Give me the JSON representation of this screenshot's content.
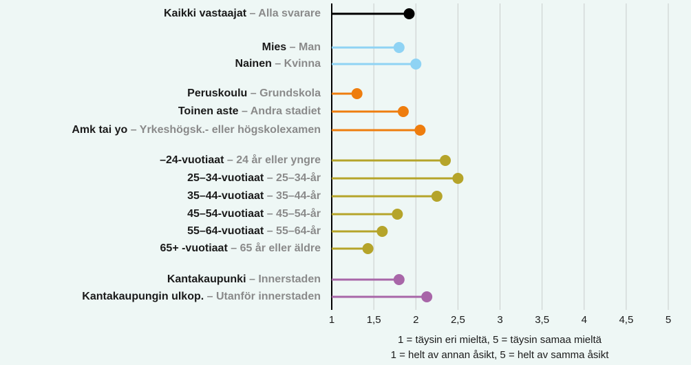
{
  "chart_data": {
    "type": "lollipop",
    "groups": [
      {
        "color": "#000000",
        "categories": [
          {
            "fi": "Kaikki vastaajat",
            "sv": "– Alla svarare"
          }
        ],
        "values": [
          1.92
        ]
      },
      {
        "color": "#8fd3f4",
        "categories": [
          {
            "fi": "Mies",
            "sv": "– Man"
          },
          {
            "fi": "Nainen",
            "sv": "– Kvinna"
          }
        ],
        "values": [
          1.8,
          2.0
        ]
      },
      {
        "color": "#ee7d0e",
        "categories": [
          {
            "fi": "Peruskoulu",
            "sv": "– Grundskola"
          },
          {
            "fi": "Toinen aste",
            "sv": "– Andra stadiet"
          },
          {
            "fi": "Amk tai yo",
            "sv": "– Yrkeshögsk.- eller högskolexamen"
          }
        ],
        "values": [
          1.3,
          1.85,
          2.05
        ]
      },
      {
        "color": "#b5a42a",
        "categories": [
          {
            "fi": "–24-vuotiaat",
            "sv": "– 24 år eller yngre"
          },
          {
            "fi": "25–34-vuotiaat",
            "sv": "– 25–34-år"
          },
          {
            "fi": "35–44-vuotiaat",
            "sv": "– 35–44-år"
          },
          {
            "fi": "45–54-vuotiaat",
            "sv": "– 45–54-år"
          },
          {
            "fi": "55–64-vuotiaat",
            "sv": "– 55–64-år"
          },
          {
            "fi": "65+ -vuotiaat",
            "sv": "– 65 år eller äldre"
          }
        ],
        "values": [
          2.35,
          2.5,
          2.25,
          1.78,
          1.6,
          1.43
        ]
      },
      {
        "color": "#a866a8",
        "categories": [
          {
            "fi": "Kantakaupunki",
            "sv": "– Innerstaden"
          },
          {
            "fi": "Kantakaupungin ulkop.",
            "sv": "– Utanför innerstaden"
          }
        ],
        "values": [
          1.8,
          2.13
        ]
      }
    ],
    "xlim": [
      1,
      5
    ],
    "xticks": [
      1,
      {
        "value": 1.5,
        "label": "1,5"
      },
      2,
      {
        "value": 2.5,
        "label": "2,5"
      },
      3,
      {
        "value": 3.5,
        "label": "3,5"
      },
      4,
      {
        "value": 4.5,
        "label": "4,5"
      },
      5
    ],
    "grid": true,
    "footnotes": [
      "1 = täysin eri mieltä, 5 = täysin samaa mieltä",
      "1 = helt av annan åsikt, 5 = helt av samma åsikt"
    ]
  }
}
